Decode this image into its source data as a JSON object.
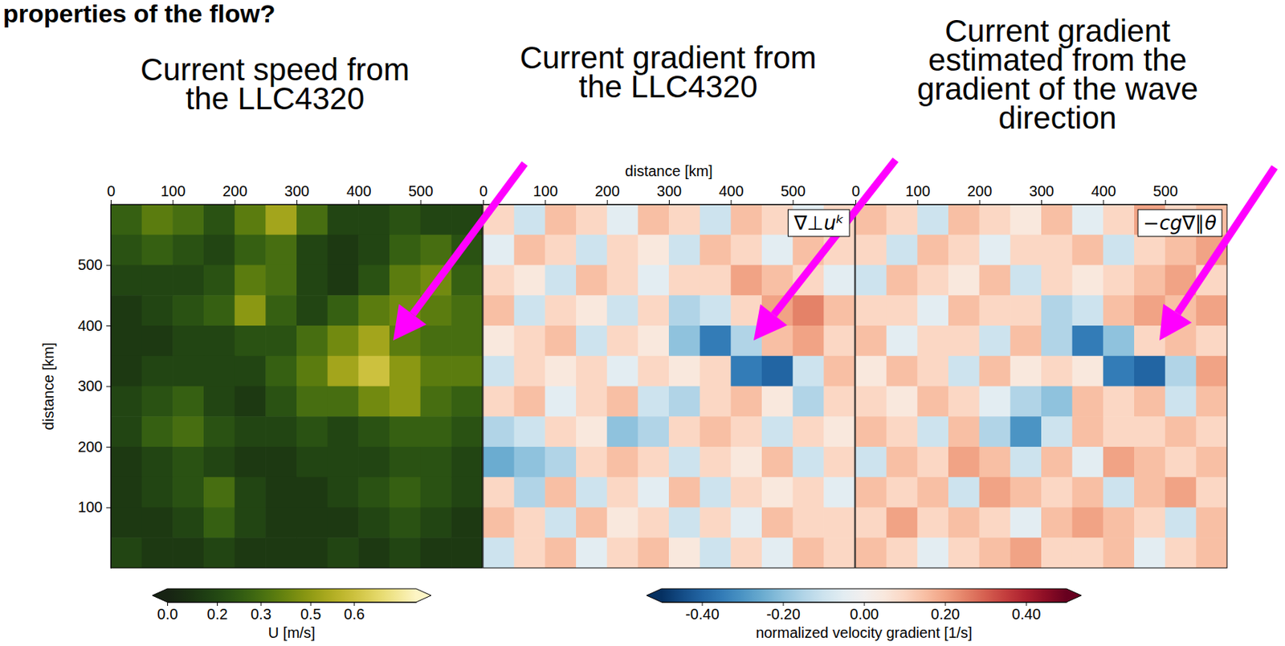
{
  "title": "properties of the flow?",
  "chart_data": [
    {
      "type": "heatmap",
      "title": "Current speed from the LLC4320",
      "ylabel": "distance [km]",
      "xlim": [
        0,
        600
      ],
      "ylim": [
        0,
        600
      ],
      "xticks": [
        0,
        100,
        200,
        300,
        400,
        500
      ],
      "yticks": [
        100,
        200,
        300,
        400,
        500
      ],
      "x": [
        25,
        75,
        125,
        175,
        225,
        275,
        325,
        375,
        425,
        475,
        525,
        575
      ],
      "y": [
        575,
        525,
        475,
        425,
        375,
        325,
        275,
        225,
        175,
        125,
        75,
        25
      ],
      "cells": [
        [
          0.25,
          0.35,
          0.3,
          0.2,
          0.35,
          0.5,
          0.3,
          0.15,
          0.15,
          0.2,
          0.15,
          0.15
        ],
        [
          0.2,
          0.25,
          0.2,
          0.15,
          0.25,
          0.3,
          0.15,
          0.1,
          0.15,
          0.25,
          0.3,
          0.2
        ],
        [
          0.15,
          0.15,
          0.15,
          0.2,
          0.35,
          0.3,
          0.15,
          0.1,
          0.2,
          0.35,
          0.4,
          0.25
        ],
        [
          0.1,
          0.15,
          0.2,
          0.25,
          0.45,
          0.25,
          0.15,
          0.25,
          0.35,
          0.4,
          0.35,
          0.3
        ],
        [
          0.1,
          0.1,
          0.15,
          0.15,
          0.2,
          0.2,
          0.3,
          0.4,
          0.5,
          0.35,
          0.3,
          0.3
        ],
        [
          0.1,
          0.15,
          0.15,
          0.15,
          0.15,
          0.25,
          0.35,
          0.5,
          0.6,
          0.45,
          0.35,
          0.35
        ],
        [
          0.15,
          0.2,
          0.25,
          0.15,
          0.1,
          0.2,
          0.3,
          0.3,
          0.4,
          0.45,
          0.3,
          0.25
        ],
        [
          0.15,
          0.25,
          0.3,
          0.2,
          0.15,
          0.15,
          0.2,
          0.15,
          0.2,
          0.25,
          0.25,
          0.2
        ],
        [
          0.1,
          0.15,
          0.2,
          0.15,
          0.1,
          0.1,
          0.15,
          0.15,
          0.15,
          0.2,
          0.2,
          0.15
        ],
        [
          0.1,
          0.15,
          0.2,
          0.3,
          0.15,
          0.1,
          0.1,
          0.15,
          0.2,
          0.25,
          0.2,
          0.15
        ],
        [
          0.1,
          0.1,
          0.15,
          0.25,
          0.15,
          0.1,
          0.1,
          0.1,
          0.15,
          0.2,
          0.15,
          0.1
        ],
        [
          0.15,
          0.1,
          0.1,
          0.15,
          0.1,
          0.1,
          0.1,
          0.15,
          0.1,
          0.15,
          0.1,
          0.1
        ]
      ],
      "zlim": [
        0,
        0.8
      ],
      "color": "speed",
      "colorbar": {
        "label": "U [m/s]",
        "ticks": [
          {
            "value": 0,
            "label": "0.0"
          },
          {
            "value": 0.16,
            "label": "0.2"
          },
          0.3,
          {
            "value": 0.46,
            "label": "0.5"
          },
          0.6
        ]
      }
    },
    {
      "type": "heatmap",
      "title": "Current gradient from the LLC4320",
      "xlabel": "distance [km]",
      "annotation": "∇⊥uᵏ",
      "tick_labels": "x",
      "xlim": [
        0,
        600
      ],
      "ylim": [
        0,
        600
      ],
      "xticks": [
        0,
        100,
        200,
        300,
        400,
        500
      ],
      "x": [
        25,
        75,
        125,
        175,
        225,
        275,
        325,
        375,
        425,
        475,
        525,
        575
      ],
      "y": [
        575,
        525,
        475,
        425,
        375,
        325,
        275,
        225,
        175,
        125,
        75,
        25
      ],
      "cells": [
        [
          0.1,
          -0.1,
          0.15,
          0.1,
          -0.05,
          0.15,
          0.1,
          -0.1,
          0.15,
          0.1,
          -0.05,
          0.1
        ],
        [
          -0.05,
          0.15,
          0.1,
          -0.1,
          0.1,
          0.05,
          -0.1,
          0.15,
          0.1,
          -0.05,
          0.15,
          0.1
        ],
        [
          0.1,
          0.05,
          -0.1,
          0.15,
          0.1,
          -0.05,
          0.1,
          0.1,
          0.2,
          0.15,
          0.1,
          -0.05
        ],
        [
          0.15,
          -0.1,
          0.1,
          0.05,
          -0.1,
          0.1,
          -0.15,
          -0.1,
          0.1,
          0.2,
          0.25,
          0.15
        ],
        [
          0.05,
          0.1,
          0.15,
          -0.1,
          0.1,
          0.05,
          -0.2,
          -0.35,
          -0.15,
          0.15,
          0.2,
          0.1
        ],
        [
          -0.1,
          0.1,
          0.05,
          0.1,
          -0.05,
          0.1,
          0.05,
          0.1,
          -0.35,
          -0.4,
          -0.1,
          0.15
        ],
        [
          0.1,
          0.15,
          -0.05,
          0.1,
          0.15,
          -0.1,
          -0.15,
          0.1,
          0.15,
          0.05,
          -0.15,
          0.1
        ],
        [
          -0.15,
          -0.1,
          0.1,
          0.05,
          -0.2,
          -0.15,
          0.1,
          0.15,
          0.1,
          -0.1,
          0.1,
          0.05
        ],
        [
          -0.25,
          -0.2,
          -0.15,
          0.1,
          0.15,
          0.1,
          -0.1,
          0.1,
          0.05,
          0.15,
          -0.1,
          0.1
        ],
        [
          0.1,
          -0.15,
          0.15,
          -0.1,
          0.1,
          -0.05,
          0.15,
          -0.1,
          0.1,
          0.05,
          0.1,
          -0.05
        ],
        [
          0.15,
          0.1,
          -0.1,
          0.15,
          0.05,
          0.1,
          -0.1,
          0.1,
          -0.05,
          0.15,
          0.1,
          0.1
        ],
        [
          -0.1,
          0.1,
          0.15,
          -0.05,
          0.1,
          0.15,
          0.05,
          -0.1,
          0.1,
          -0.05,
          0.15,
          0.1
        ]
      ],
      "zlim": [
        -0.5,
        0.5
      ],
      "color": "balance",
      "colorbar": {
        "label": "normalized velocity gradient [1/s]",
        "ticks": [
          {
            "value": -0.4,
            "label": "-0.40"
          },
          {
            "value": -0.2,
            "label": "-0.20"
          },
          {
            "value": 0,
            "label": "0.00"
          },
          {
            "value": 0.2,
            "label": "0.20"
          },
          {
            "value": 0.4,
            "label": "0.40"
          }
        ]
      }
    },
    {
      "type": "heatmap",
      "title": "Current gradient estimated from the gradient of the wave direction",
      "annotation": "−cg∇∥θ",
      "tick_labels": "x",
      "xlim": [
        0,
        600
      ],
      "ylim": [
        0,
        600
      ],
      "xticks": [
        0,
        100,
        200,
        300,
        400,
        500
      ],
      "x": [
        25,
        75,
        125,
        175,
        225,
        275,
        325,
        375,
        425,
        475,
        525,
        575
      ],
      "y": [
        575,
        525,
        475,
        425,
        375,
        325,
        275,
        225,
        175,
        125,
        75,
        25
      ],
      "cells": [
        [
          0.15,
          0.1,
          -0.1,
          0.15,
          0.1,
          0.05,
          0.15,
          -0.05,
          0.1,
          0.2,
          0.1,
          0.15
        ],
        [
          0.1,
          -0.1,
          0.15,
          0.1,
          -0.05,
          0.1,
          0.1,
          0.15,
          -0.1,
          0.1,
          0.15,
          0.2
        ],
        [
          -0.1,
          0.15,
          0.1,
          0.05,
          0.15,
          -0.1,
          0.1,
          0.05,
          0.1,
          0.15,
          0.2,
          0.1
        ],
        [
          0.1,
          0.1,
          -0.05,
          0.15,
          0.1,
          0.1,
          -0.15,
          -0.1,
          0.15,
          0.2,
          0.15,
          0.2
        ],
        [
          0.15,
          -0.05,
          0.1,
          0.1,
          -0.1,
          0.15,
          -0.15,
          -0.35,
          -0.2,
          0.1,
          0.15,
          0.1
        ],
        [
          0.05,
          0.15,
          0.1,
          -0.1,
          0.15,
          0.05,
          0.1,
          0.05,
          -0.35,
          -0.4,
          -0.15,
          0.2
        ],
        [
          0.1,
          0.05,
          0.15,
          0.1,
          -0.05,
          -0.15,
          -0.2,
          0.15,
          0.1,
          0.15,
          -0.1,
          0.15
        ],
        [
          0.15,
          0.1,
          -0.1,
          0.15,
          -0.15,
          -0.3,
          -0.1,
          0.15,
          0.1,
          0.1,
          0.15,
          0.1
        ],
        [
          -0.1,
          0.15,
          0.1,
          0.2,
          0.15,
          -0.1,
          0.15,
          -0.05,
          0.2,
          0.15,
          0.1,
          0.15
        ],
        [
          0.15,
          0.1,
          0.15,
          -0.1,
          0.2,
          0.15,
          0.1,
          0.15,
          -0.1,
          0.15,
          0.2,
          0.1
        ],
        [
          0.1,
          0.2,
          0.1,
          0.15,
          0.1,
          -0.05,
          0.15,
          0.2,
          0.15,
          0.1,
          -0.1,
          0.15
        ],
        [
          0.15,
          0.1,
          -0.05,
          0.1,
          0.15,
          0.2,
          0.1,
          0.1,
          0.15,
          -0.05,
          0.1,
          0.15
        ]
      ],
      "zlim": [
        -0.5,
        0.5
      ],
      "color": "balance"
    }
  ]
}
